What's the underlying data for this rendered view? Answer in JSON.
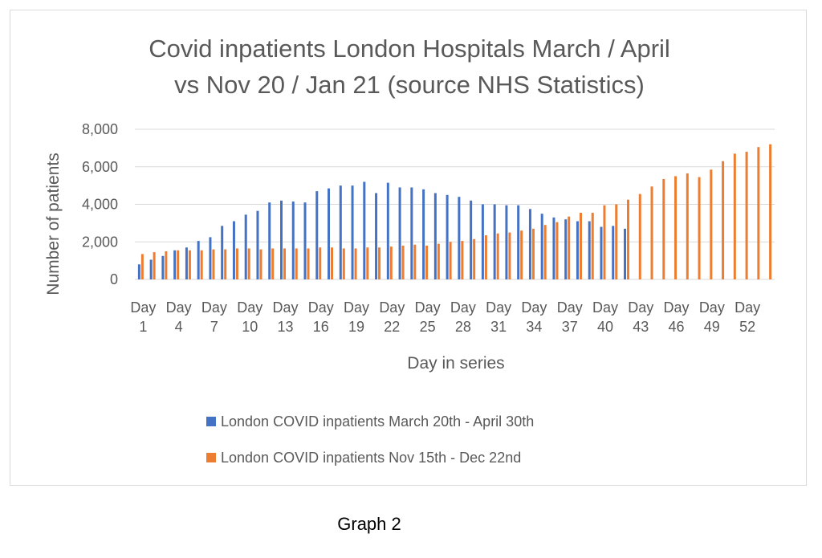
{
  "caption": "Graph 2",
  "chart_data": {
    "type": "bar",
    "title": "Covid inpatients London Hospitals March / April vs Nov 20 / Jan 21 (source NHS Statistics)",
    "title_lines": [
      "Covid inpatients London Hospitals March / April",
      "vs Nov 20 / Jan 21 (source NHS Statistics)"
    ],
    "xlabel": "Day in series",
    "ylabel": "Number of patients",
    "ylim": [
      0,
      8000
    ],
    "yticks": [
      0,
      2000,
      4000,
      6000,
      8000
    ],
    "ytick_labels": [
      "0",
      "2,000",
      "4,000",
      "6,000",
      "8,000"
    ],
    "xtick_labels": [
      "Day 1",
      "Day 4",
      "Day 7",
      "Day 10",
      "Day 13",
      "Day 16",
      "Day 19",
      "Day 22",
      "Day 25",
      "Day 28",
      "Day 31",
      "Day 34",
      "Day 37",
      "Day 40",
      "Day 43",
      "Day 46",
      "Day 49",
      "Day 52"
    ],
    "grid": true,
    "legend": "bottom",
    "series": [
      {
        "name": "London COVID inpatients March 20th - April 30th",
        "color": "#4472c4",
        "values": [
          800,
          1050,
          1250,
          1550,
          1700,
          2050,
          2250,
          2850,
          3100,
          3450,
          3650,
          4100,
          4200,
          4150,
          4100,
          4700,
          4850,
          5000,
          5000,
          5200,
          4600,
          5150,
          4900,
          4900,
          4800,
          4600,
          4500,
          4400,
          4200,
          4000,
          4000,
          3950,
          3950,
          3750,
          3500,
          3300,
          3200,
          3100,
          3100,
          2800,
          2850,
          2700
        ]
      },
      {
        "name": "London COVID inpatients Nov 15th - Dec 22nd",
        "color": "#ed7d31",
        "values": [
          1350,
          1450,
          1500,
          1550,
          1550,
          1550,
          1600,
          1600,
          1650,
          1650,
          1600,
          1650,
          1650,
          1650,
          1650,
          1700,
          1700,
          1650,
          1650,
          1700,
          1700,
          1750,
          1800,
          1850,
          1800,
          1900,
          2000,
          2050,
          2150,
          2350,
          2450,
          2500,
          2600,
          2700,
          2900,
          3050,
          3350,
          3550,
          3550,
          3950,
          4000,
          4250,
          4550,
          4950,
          5350,
          5500,
          5650,
          5450,
          5850,
          6300,
          6700,
          6800,
          7050,
          7200
        ]
      }
    ]
  }
}
